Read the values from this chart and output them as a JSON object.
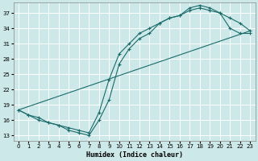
{
  "xlabel": "Humidex (Indice chaleur)",
  "bg_color": "#cde8e8",
  "grid_color": "#b0d0d0",
  "line_color": "#1a6b6b",
  "xlim": [
    -0.5,
    23.5
  ],
  "ylim": [
    12,
    39
  ],
  "xticks": [
    0,
    1,
    2,
    3,
    4,
    5,
    6,
    7,
    8,
    9,
    10,
    11,
    12,
    13,
    14,
    15,
    16,
    17,
    18,
    19,
    20,
    21,
    22,
    23
  ],
  "yticks": [
    13,
    16,
    19,
    22,
    25,
    28,
    31,
    34,
    37
  ],
  "curve1_x": [
    0,
    1,
    2,
    3,
    4,
    5,
    6,
    7,
    8,
    9,
    10,
    11,
    12,
    13,
    14,
    15,
    16,
    17,
    18,
    19,
    20,
    21,
    22,
    23
  ],
  "curve1_y": [
    18,
    17,
    16,
    15.5,
    15,
    14,
    13.5,
    13,
    16,
    20,
    27,
    30,
    32,
    33,
    35,
    36,
    36.5,
    37.5,
    38,
    37.5,
    37,
    36,
    35,
    33.5
  ],
  "curve2_x": [
    0,
    1,
    2,
    3,
    4,
    5,
    6,
    7,
    8,
    9,
    10,
    11,
    12,
    13,
    14,
    15,
    16,
    17,
    18,
    19,
    20,
    21,
    22,
    23
  ],
  "curve2_y": [
    18,
    17,
    16.5,
    15.5,
    15,
    14.5,
    14,
    13.5,
    17.5,
    24,
    29,
    31,
    33,
    34,
    35,
    36,
    36.5,
    38,
    38.5,
    38,
    37,
    34,
    33,
    33
  ],
  "line_x": [
    0,
    23
  ],
  "line_y": [
    18,
    33.5
  ]
}
